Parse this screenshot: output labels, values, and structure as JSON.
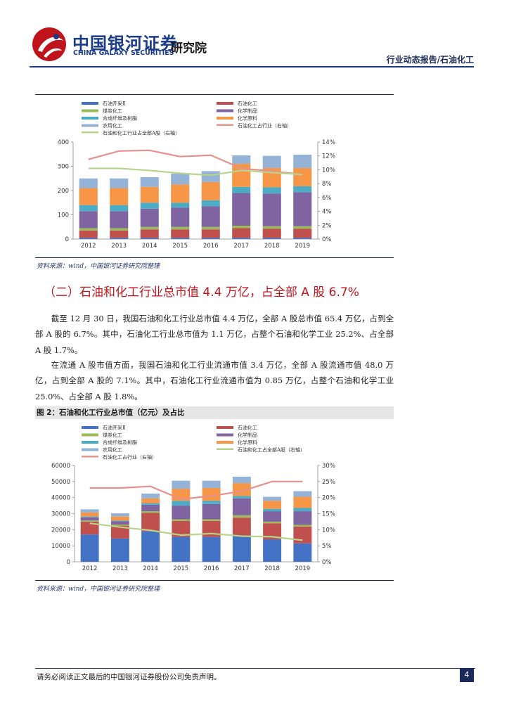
{
  "header": {
    "company_cn": "中国银河证券",
    "company_en": "CHINA GALAXY SECURITIES",
    "institute": "研究院",
    "report_type": "行业动态报告/石油化工"
  },
  "figure1": {
    "source": "资料来源：wind，中国银河证券研究院整理"
  },
  "section": {
    "title": "（二）石油和化工行业总市值 4.4 万亿，占全部 A 股 6.7%",
    "paragraphs": [
      "截至 12 月 30 日，我国石油和化工行业总市值 4.4 万亿，全部 A 股总市值 65.4 万亿，占到全部 A 股的 6.7%。其中，石油化工行业总市值为 1.1 万亿，占整个石油和化学工业 25.2%、占全部 A 股 1.7%。",
      "在流通 A 股市值方面，我国石油和化工行业流通市值 3.4 万亿，全部 A 股流通市值 48.0 万亿，占到全部 A 股的 7.1%。其中，石油化工行业流通市值为 0.85 万亿，占整个石油和化学工业 25.0%、占全部 A 股 1.8%。"
    ]
  },
  "figure2": {
    "title": "图 2：石油和化工行业总市值（亿元）及占比",
    "source": "资料来源：wind，中国银河证券研究院整理"
  },
  "footer": {
    "disclaimer": "请务必阅读正文最后的中国银河证券股份公司免责声明。",
    "page": "4"
  },
  "colors": {
    "oil_extraction": "#4472c4",
    "petrochemical": "#c0504d",
    "coal_chemical": "#9bbb59",
    "chemical_products": "#8064a2",
    "synthetic_fiber": "#4bacc6",
    "chemical_materials": "#f79646",
    "agrochemical": "#95b3d7",
    "petro_share_line": "#e6918d",
    "total_share_line": "#b7d48a",
    "brand_blue": "#1a3a8a",
    "brand_red": "#c0141c"
  },
  "chart_data": [
    {
      "type": "bar",
      "stacked": true,
      "categories": [
        "2012",
        "2013",
        "2014",
        "2015",
        "2016",
        "2017",
        "2018",
        "2019"
      ],
      "ylim": [
        0,
        400
      ],
      "yticks": [
        "0",
        "100",
        "200",
        "300",
        "400"
      ],
      "y2lim": [
        0,
        14
      ],
      "y2ticks": [
        "0%",
        "2%",
        "4%",
        "6%",
        "8%",
        "10%",
        "12%",
        "14%"
      ],
      "legend": [
        "石油开采Ⅱ",
        "石油化工",
        "煤炭化工",
        "化学制品",
        "合成纤维及树脂",
        "化学原料",
        "农用化工",
        "石油化工占行业（右轴）",
        "石油和化工行业占全部A股（右轴）"
      ],
      "series": [
        {
          "name": "石油开采Ⅱ",
          "values": [
            5,
            5,
            5,
            5,
            5,
            5,
            5,
            5
          ]
        },
        {
          "name": "石油化工",
          "values": [
            30,
            30,
            35,
            35,
            35,
            40,
            38,
            38
          ]
        },
        {
          "name": "煤炭化工",
          "values": [
            10,
            10,
            10,
            10,
            10,
            10,
            10,
            10
          ]
        },
        {
          "name": "化学制品",
          "values": [
            70,
            70,
            75,
            80,
            85,
            135,
            135,
            140
          ]
        },
        {
          "name": "合成纤维及树脂",
          "values": [
            25,
            25,
            25,
            20,
            25,
            25,
            25,
            25
          ]
        },
        {
          "name": "化学原料",
          "values": [
            70,
            70,
            65,
            75,
            75,
            95,
            80,
            75
          ]
        },
        {
          "name": "农用化工",
          "values": [
            40,
            40,
            40,
            45,
            45,
            35,
            50,
            55
          ]
        }
      ],
      "lines": [
        {
          "name": "石油化工占行业（右轴）",
          "axis": "right",
          "values": [
            11.5,
            12.7,
            12.8,
            11.9,
            12.1,
            10.2,
            9.8,
            9.3
          ]
        },
        {
          "name": "石油和化工行业占全部A股（右轴）",
          "axis": "right",
          "values": [
            10.2,
            10.2,
            9.9,
            9.5,
            9.2,
            9.9,
            9.6,
            9.3
          ]
        }
      ]
    },
    {
      "type": "bar",
      "stacked": true,
      "categories": [
        "2012",
        "2013",
        "2014",
        "2015",
        "2016",
        "2017",
        "2018",
        "2019"
      ],
      "ylim": [
        0,
        60000
      ],
      "yticks": [
        "0",
        "10000",
        "20000",
        "30000",
        "40000",
        "50000",
        "60000"
      ],
      "y2lim": [
        0,
        30
      ],
      "y2ticks": [
        "0%",
        "5%",
        "10%",
        "15%",
        "20%",
        "25%",
        "30%"
      ],
      "legend": [
        "石油开采Ⅱ",
        "石油化工",
        "煤炭化工",
        "化学制品",
        "合成纤维及树脂",
        "化学原料",
        "农用化工",
        "石油和化工占全部A股（右轴）",
        "石油化工占行业（右轴）"
      ],
      "series": [
        {
          "name": "石油开采Ⅱ",
          "values": [
            17000,
            14500,
            19000,
            15500,
            15500,
            16000,
            14000,
            11500
          ]
        },
        {
          "name": "石油化工",
          "values": [
            8000,
            8000,
            11500,
            10000,
            10000,
            11500,
            10000,
            10500
          ]
        },
        {
          "name": "煤炭化工",
          "values": [
            700,
            700,
            1000,
            1000,
            1000,
            1500,
            1000,
            1000
          ]
        },
        {
          "name": "化学制品",
          "values": [
            2000,
            2000,
            4000,
            8500,
            9500,
            10500,
            6500,
            8500
          ]
        },
        {
          "name": "合成纤维及树脂",
          "values": [
            500,
            500,
            1000,
            3000,
            2000,
            1500,
            1500,
            2000
          ]
        },
        {
          "name": "化学原料",
          "values": [
            2500,
            2500,
            3000,
            7500,
            8000,
            8000,
            5000,
            7000
          ]
        },
        {
          "name": "农用化工",
          "values": [
            2000,
            2000,
            3000,
            5000,
            4500,
            4000,
            2500,
            3500
          ]
        }
      ],
      "lines": [
        {
          "name": "石油化工占行业（右轴）",
          "axis": "right",
          "values": [
            23,
            23,
            23.5,
            19.5,
            20.5,
            22,
            25,
            25
          ]
        },
        {
          "name": "石油和化工占全部A股（右轴）",
          "axis": "right",
          "values": [
            12,
            10.8,
            9.8,
            8.3,
            8.8,
            8,
            7.8,
            6.7
          ]
        }
      ]
    }
  ]
}
